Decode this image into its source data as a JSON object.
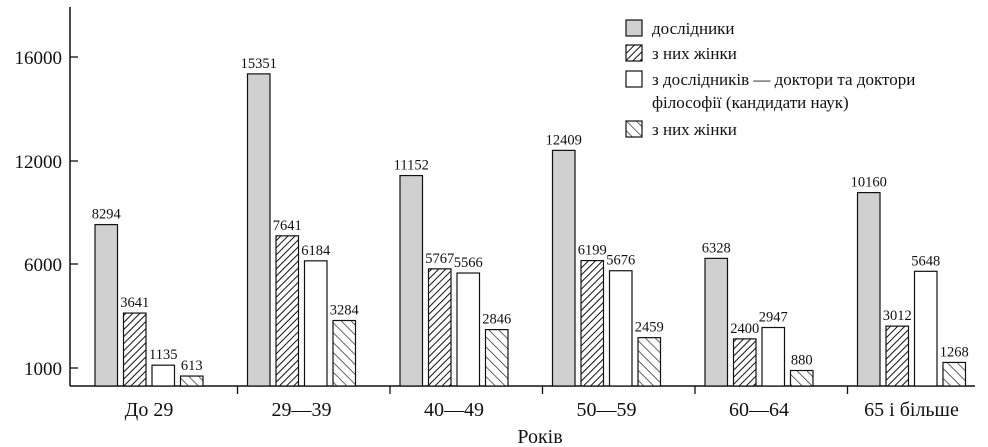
{
  "chart_data": {
    "type": "bar",
    "title": "",
    "xlabel": "Років",
    "ylabel": "",
    "categories": [
      "До 29",
      "29—39",
      "40—49",
      "50—59",
      "60—64",
      "65 і більше"
    ],
    "series": [
      {
        "name": "дослідники",
        "values": [
          8294,
          15351,
          11152,
          12409,
          6328,
          10160
        ],
        "fill": "gray"
      },
      {
        "name": "з них жінки",
        "values": [
          3641,
          7641,
          5767,
          6199,
          2400,
          3012
        ],
        "fill": "dense-hatch"
      },
      {
        "name": "з дослідників — доктори та доктори філософії (кандидати наук)",
        "legend_lines": [
          "з дослідників — доктори та  доктори",
          "філософії (кандидати наук)"
        ],
        "values": [
          1135,
          6184,
          5566,
          5676,
          2947,
          5648
        ],
        "fill": "white"
      },
      {
        "name": "з них жінки",
        "values": [
          613,
          3284,
          2846,
          2459,
          880,
          1268
        ],
        "fill": "sparse-hatch"
      }
    ],
    "yticks": [
      1000,
      6000,
      12000,
      16000
    ],
    "grid": false,
    "legend_position": "top-right",
    "colors": {
      "gray": "#d0d0d0",
      "stroke": "#111111",
      "white": "#ffffff"
    }
  }
}
